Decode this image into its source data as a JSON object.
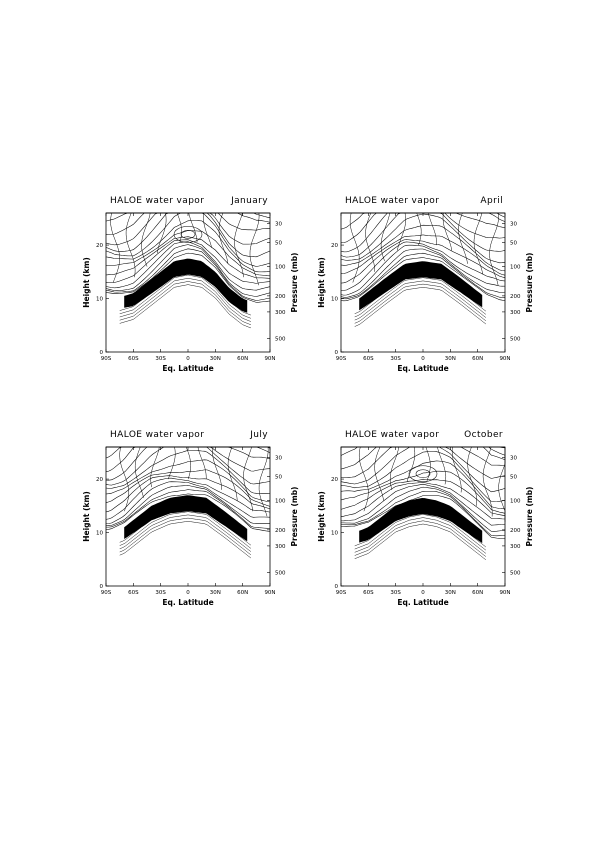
{
  "chart_data": [
    {
      "type": "contour",
      "title": "HALOE water vapor",
      "month": "January",
      "xlabel": "Eq. Latitude",
      "ylabel": "Height (km)",
      "y2label": "Pressure (mb)",
      "xlim": [
        -90,
        90
      ],
      "ylim": [
        0,
        26
      ],
      "x_ticks": [
        "90S",
        "60S",
        "30S",
        "0",
        "30N",
        "60N",
        "90N"
      ],
      "y_ticks": [
        "0",
        "10",
        "20"
      ],
      "pressure_ticks": [
        "30",
        "50",
        "100",
        "200",
        "300",
        "500"
      ],
      "tropopause": [
        [
          -80,
          10
        ],
        [
          -60,
          11
        ],
        [
          -45,
          13
        ],
        [
          -30,
          15
        ],
        [
          -15,
          17
        ],
        [
          0,
          17.5
        ],
        [
          15,
          17
        ],
        [
          30,
          15
        ],
        [
          45,
          12
        ],
        [
          60,
          10
        ],
        [
          75,
          9
        ],
        [
          85,
          9
        ]
      ],
      "filled_region": "dark band below tropical tropopause (15-18 km) extending to 45S-60S lower edges",
      "min_center": {
        "lat": 0,
        "height": 22
      }
    },
    {
      "type": "contour",
      "title": "HALOE water vapor",
      "month": "April",
      "xlabel": "Eq. Latitude",
      "ylabel": "Height (km)",
      "y2label": "Pressure (mb)",
      "xlim": [
        -90,
        90
      ],
      "ylim": [
        0,
        26
      ],
      "x_ticks": [
        "90S",
        "60S",
        "30S",
        "0",
        "30N",
        "60N",
        "90N"
      ],
      "y_ticks": [
        "0",
        "10",
        "20"
      ],
      "pressure_ticks": [
        "30",
        "50",
        "100",
        "200",
        "300",
        "500"
      ],
      "tropopause": [
        [
          -85,
          9
        ],
        [
          -70,
          10
        ],
        [
          -55,
          12
        ],
        [
          -40,
          14
        ],
        [
          -20,
          16.5
        ],
        [
          0,
          17
        ],
        [
          20,
          16.5
        ],
        [
          40,
          14
        ],
        [
          55,
          12
        ],
        [
          70,
          10
        ],
        [
          85,
          9
        ]
      ],
      "filled_region": "broad dark band under tropopause from 60S to 50N",
      "min_center": null
    },
    {
      "type": "contour",
      "title": "HALOE water vapor",
      "month": "July",
      "xlabel": "Eq. Latitude",
      "ylabel": "Height (km)",
      "y2label": "Pressure (mb)",
      "xlim": [
        -90,
        90
      ],
      "ylim": [
        0,
        26
      ],
      "x_ticks": [
        "90S",
        "60S",
        "30S",
        "0",
        "30N",
        "60N",
        "90N"
      ],
      "y_ticks": [
        "0",
        "10",
        "20"
      ],
      "pressure_ticks": [
        "30",
        "50",
        "100",
        "200",
        "300",
        "500"
      ],
      "tropopause": [
        [
          -85,
          10
        ],
        [
          -70,
          11
        ],
        [
          -55,
          13
        ],
        [
          -40,
          15
        ],
        [
          -20,
          16.5
        ],
        [
          0,
          17
        ],
        [
          20,
          16.5
        ],
        [
          40,
          14
        ],
        [
          55,
          12
        ],
        [
          70,
          10
        ],
        [
          85,
          10
        ]
      ],
      "filled_region": "dark blob near equator 16-20 km and polar south dehydration 15-18 km",
      "min_center": null
    },
    {
      "type": "contour",
      "title": "HALOE water vapor",
      "month": "October",
      "xlabel": "Eq. Latitude",
      "ylabel": "Height (km)",
      "y2label": "Pressure (mb)",
      "xlim": [
        -90,
        90
      ],
      "ylim": [
        0,
        26
      ],
      "x_ticks": [
        "90S",
        "60S",
        "30S",
        "0",
        "30N",
        "60N",
        "90N"
      ],
      "y_ticks": [
        "0",
        "10",
        "20"
      ],
      "pressure_ticks": [
        "30",
        "50",
        "100",
        "200",
        "300",
        "500"
      ],
      "tropopause": [
        [
          -75,
          10
        ],
        [
          -60,
          11
        ],
        [
          -45,
          13
        ],
        [
          -30,
          15
        ],
        [
          -15,
          16
        ],
        [
          0,
          16.5
        ],
        [
          15,
          16
        ],
        [
          30,
          15
        ],
        [
          45,
          13
        ],
        [
          60,
          11
        ],
        [
          75,
          9
        ]
      ],
      "filled_region": "dark southern polar column 10-19 km near 75S",
      "min_center": {
        "lat": 0,
        "height": 21
      }
    }
  ]
}
